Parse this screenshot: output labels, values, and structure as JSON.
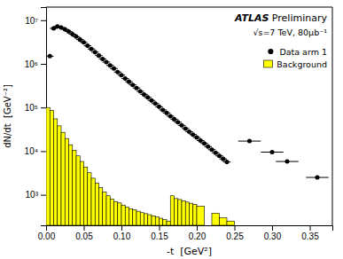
{
  "chart_data": {
    "type": "bar",
    "title": "ATLAS Preliminary",
    "subtitle": "√s=7 TeV, 80μb⁻¹",
    "x_label": "-t  [GeV²]",
    "y_label": "dN/dt  [GeV⁻²]",
    "log": "y",
    "grid": false,
    "legend": "upper right",
    "xlim": [
      0,
      0.38
    ],
    "ylim": [
      200,
      20000000.0
    ],
    "xticks": [
      {
        "value": 0,
        "label": "0.00"
      },
      0.05,
      {
        "value": 0.1,
        "label": "0.10"
      },
      0.15,
      {
        "value": 0.2,
        "label": "0.20"
      },
      0.25,
      {
        "value": 0.3,
        "label": "0.30"
      },
      0.35
    ],
    "yticks": [
      {
        "value": 1000,
        "label": "10³"
      },
      {
        "value": 10000,
        "label": "10⁴"
      },
      {
        "value": 100000,
        "label": "10⁵"
      },
      {
        "value": 1000000,
        "label": "10⁶"
      },
      {
        "value": 10000000,
        "label": "10⁷"
      }
    ],
    "series": [
      {
        "name": "Data arm 1",
        "type": "scatter",
        "marker": "circle",
        "color": "black",
        "x": [
          0.005,
          0.01,
          0.015,
          0.02,
          0.025,
          0.03,
          0.035,
          0.04,
          0.045,
          0.05,
          0.055,
          0.06,
          0.065,
          0.07,
          0.075,
          0.08,
          0.085,
          0.09,
          0.095,
          0.1,
          0.105,
          0.11,
          0.115,
          0.12,
          0.125,
          0.13,
          0.135,
          0.14,
          0.145,
          0.15,
          0.155,
          0.16,
          0.165,
          0.17,
          0.175,
          0.18,
          0.185,
          0.19,
          0.195,
          0.2,
          0.205,
          0.21,
          0.215,
          0.22,
          0.225,
          0.23,
          0.235,
          0.24,
          0.27,
          0.3,
          0.32,
          0.36
        ],
        "values": [
          1500000.0,
          6500000.0,
          7200000.0,
          6800000.0,
          6200000.0,
          5500000.0,
          4800000.0,
          4200000.0,
          3600000.0,
          3100000.0,
          2600000.0,
          2200000.0,
          1850000.0,
          1550000.0,
          1300000.0,
          1100000.0,
          920000.0,
          780000.0,
          650000.0,
          550000.0,
          460000.0,
          390000.0,
          330000.0,
          280000.0,
          235000.0,
          200000.0,
          170000.0,
          145000.0,
          123000.0,
          104000.0,
          88000.0,
          75000.0,
          63500.0,
          54000.0,
          46000.0,
          39000.0,
          33000.0,
          28000.0,
          24000.0,
          20500.0,
          17500.0,
          15000.0,
          12700.0,
          10800.0,
          9200.0,
          7800.0,
          6650.0,
          5650.0,
          17000.0,
          9500.0,
          5800.0,
          2500.0
        ],
        "xerr": [
          0.005,
          0.005,
          0.005,
          0.005,
          0.005,
          0.005,
          0.005,
          0.005,
          0.005,
          0.005,
          0.005,
          0.005,
          0.005,
          0.005,
          0.005,
          0.005,
          0.005,
          0.005,
          0.005,
          0.005,
          0.005,
          0.005,
          0.005,
          0.005,
          0.005,
          0.005,
          0.005,
          0.005,
          0.005,
          0.005,
          0.005,
          0.005,
          0.005,
          0.005,
          0.005,
          0.005,
          0.005,
          0.005,
          0.005,
          0.005,
          0.005,
          0.005,
          0.005,
          0.005,
          0.005,
          0.005,
          0.005,
          0.005,
          0.015,
          0.015,
          0.015,
          0.015
        ]
      },
      {
        "name": "Background",
        "type": "bar",
        "color": "#FFFF00",
        "left": [
          0.0,
          0.005,
          0.01,
          0.015,
          0.02,
          0.025,
          0.03,
          0.035,
          0.04,
          0.045,
          0.05,
          0.055,
          0.06,
          0.065,
          0.07,
          0.075,
          0.08,
          0.085,
          0.09,
          0.095,
          0.1,
          0.105,
          0.11,
          0.115,
          0.12,
          0.125,
          0.13,
          0.135,
          0.14,
          0.145,
          0.15,
          0.155,
          0.16,
          0.165,
          0.17,
          0.175,
          0.18,
          0.185,
          0.19,
          0.195,
          0.2,
          0.22,
          0.23,
          0.24
        ],
        "right": [
          0.005,
          0.01,
          0.015,
          0.02,
          0.025,
          0.03,
          0.035,
          0.04,
          0.045,
          0.05,
          0.055,
          0.06,
          0.065,
          0.07,
          0.075,
          0.08,
          0.085,
          0.09,
          0.095,
          0.1,
          0.105,
          0.11,
          0.115,
          0.12,
          0.125,
          0.13,
          0.135,
          0.14,
          0.145,
          0.15,
          0.155,
          0.16,
          0.165,
          0.17,
          0.175,
          0.18,
          0.185,
          0.19,
          0.195,
          0.2,
          0.21,
          0.23,
          0.24,
          0.25
        ],
        "values": [
          100000.0,
          85000.0,
          55000.0,
          38000.0,
          27000.0,
          19500.0,
          14000.0,
          10500.0,
          7800.0,
          5800.0,
          4300.0,
          3200.0,
          2400.0,
          1850.0,
          1450.0,
          1150.0,
          950,
          800,
          700,
          650,
          580,
          520,
          480,
          450,
          420,
          390,
          370,
          350,
          330,
          310,
          290,
          270,
          250,
          950,
          820,
          780,
          720,
          680,
          640,
          600,
          550,
          380,
          300,
          250
        ]
      }
    ]
  }
}
